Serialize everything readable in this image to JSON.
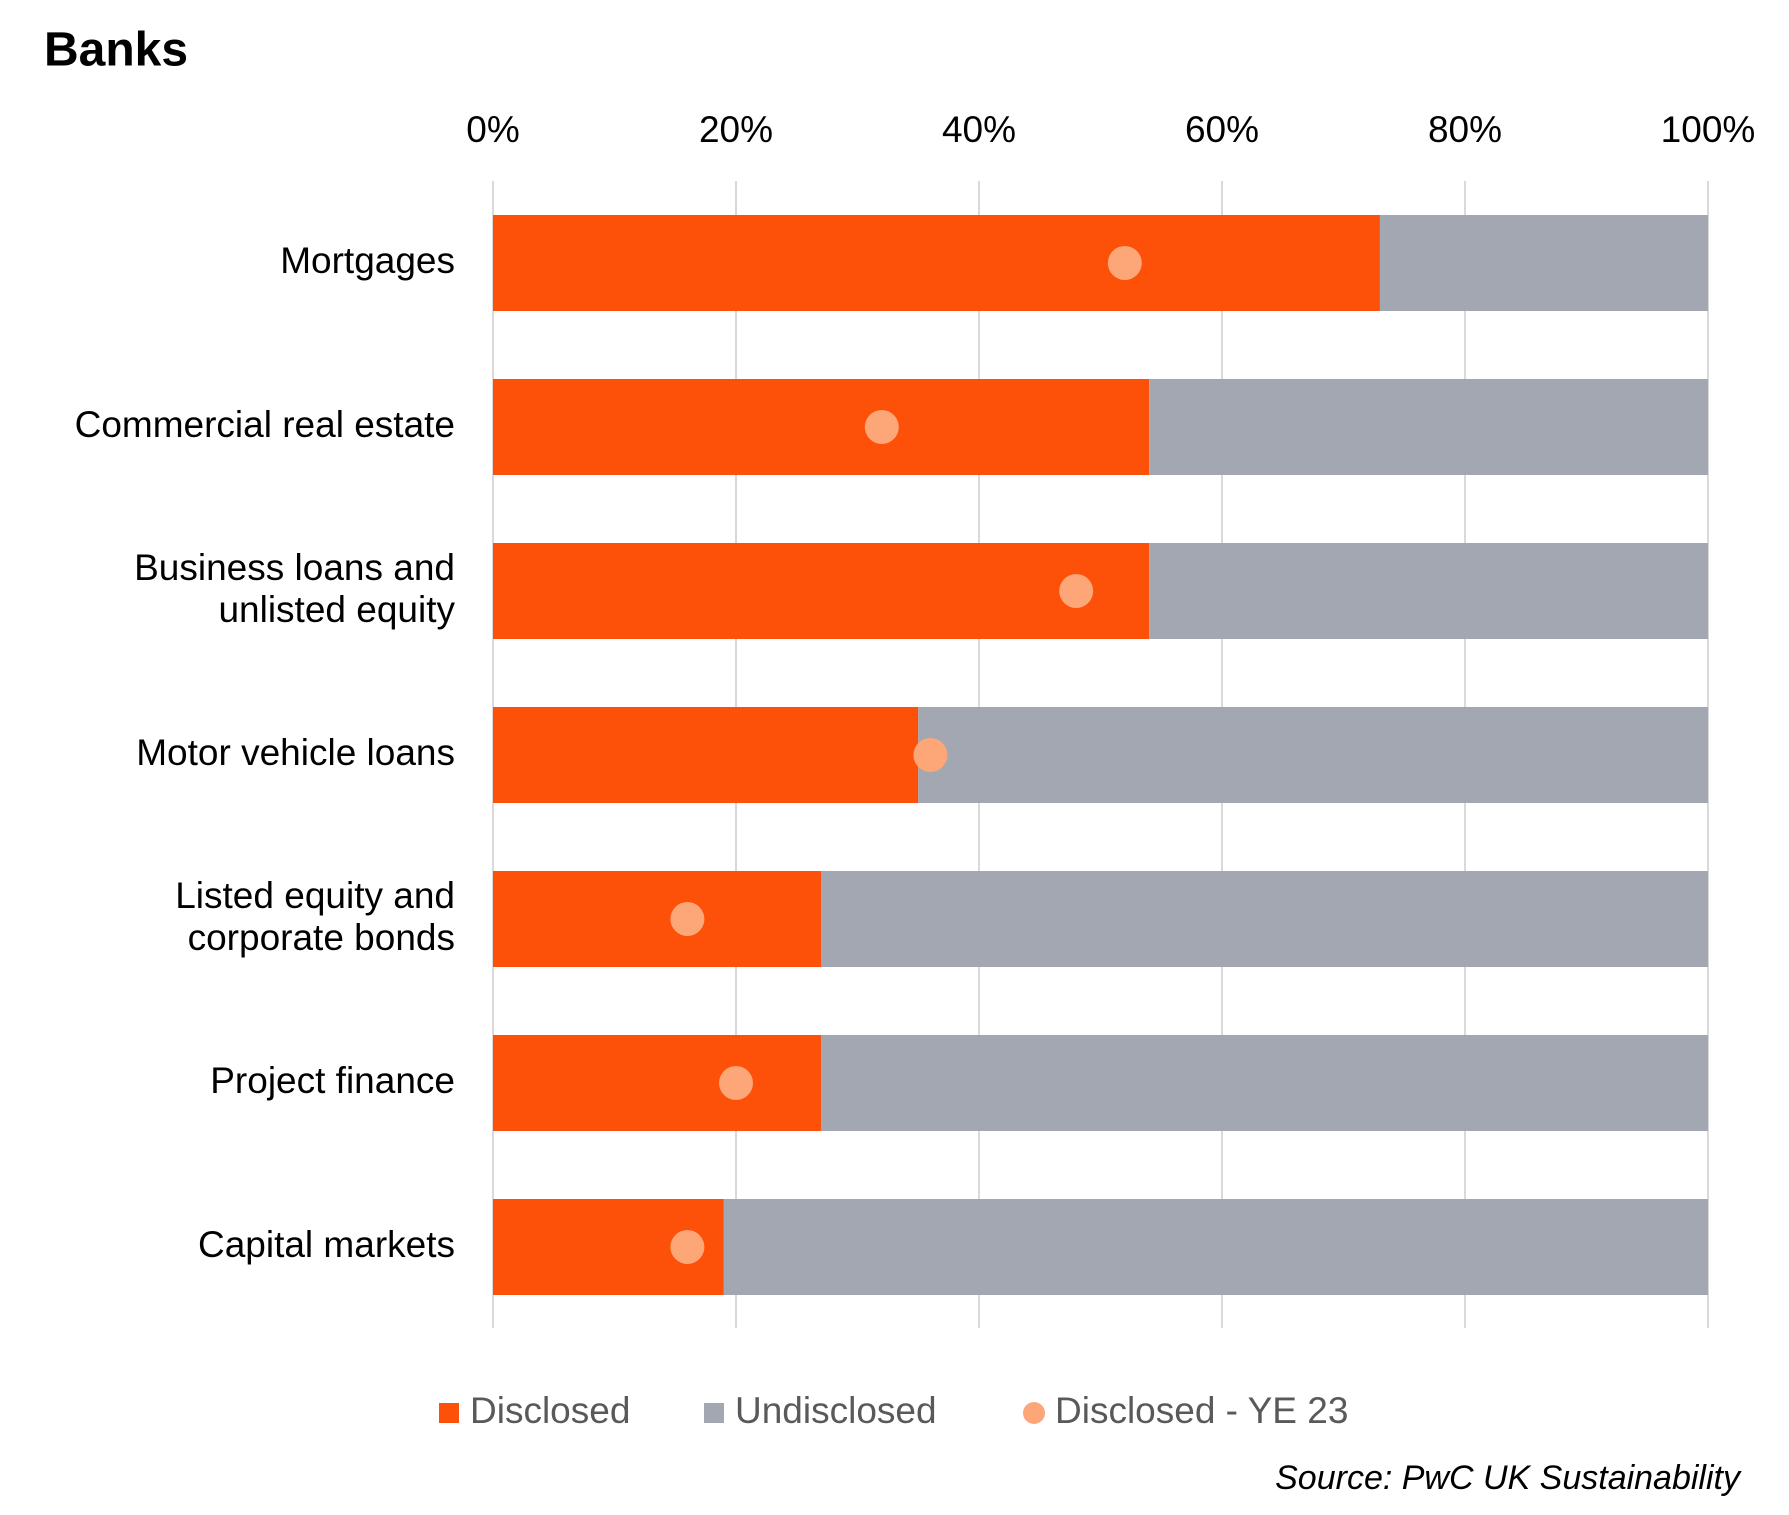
{
  "chart_data": {
    "type": "bar",
    "orientation": "horizontal",
    "stacked": true,
    "title": "Banks",
    "source": "Source: PwC UK Sustainability",
    "categories": [
      "Mortgages",
      "Commercial real estate",
      "Business loans and\nunlisted equity",
      "Motor vehicle loans",
      "Listed equity and\ncorporate bonds",
      "Project finance",
      "Capital markets"
    ],
    "series": [
      {
        "name": "Disclosed",
        "type": "bar",
        "color": "#fd5109",
        "values": [
          73,
          54,
          54,
          35,
          27,
          27,
          19
        ]
      },
      {
        "name": "Undisclosed",
        "type": "bar",
        "color": "#a2a7b1",
        "values": [
          27,
          46,
          46,
          65,
          73,
          73,
          81
        ]
      },
      {
        "name": "Disclosed - YE 23",
        "type": "dot",
        "color": "#fda678",
        "values": [
          52,
          32,
          48,
          36,
          16,
          20,
          16
        ]
      }
    ],
    "xlim": [
      0,
      100
    ],
    "xticks": [
      {
        "value": 0,
        "label": "0%"
      },
      {
        "value": 20,
        "label": "20%"
      },
      {
        "value": 40,
        "label": "40%"
      },
      {
        "value": 60,
        "label": "60%"
      },
      {
        "value": 80,
        "label": "80%"
      },
      {
        "value": 100,
        "label": "100%"
      }
    ],
    "grid": true,
    "legend": "bottom"
  }
}
